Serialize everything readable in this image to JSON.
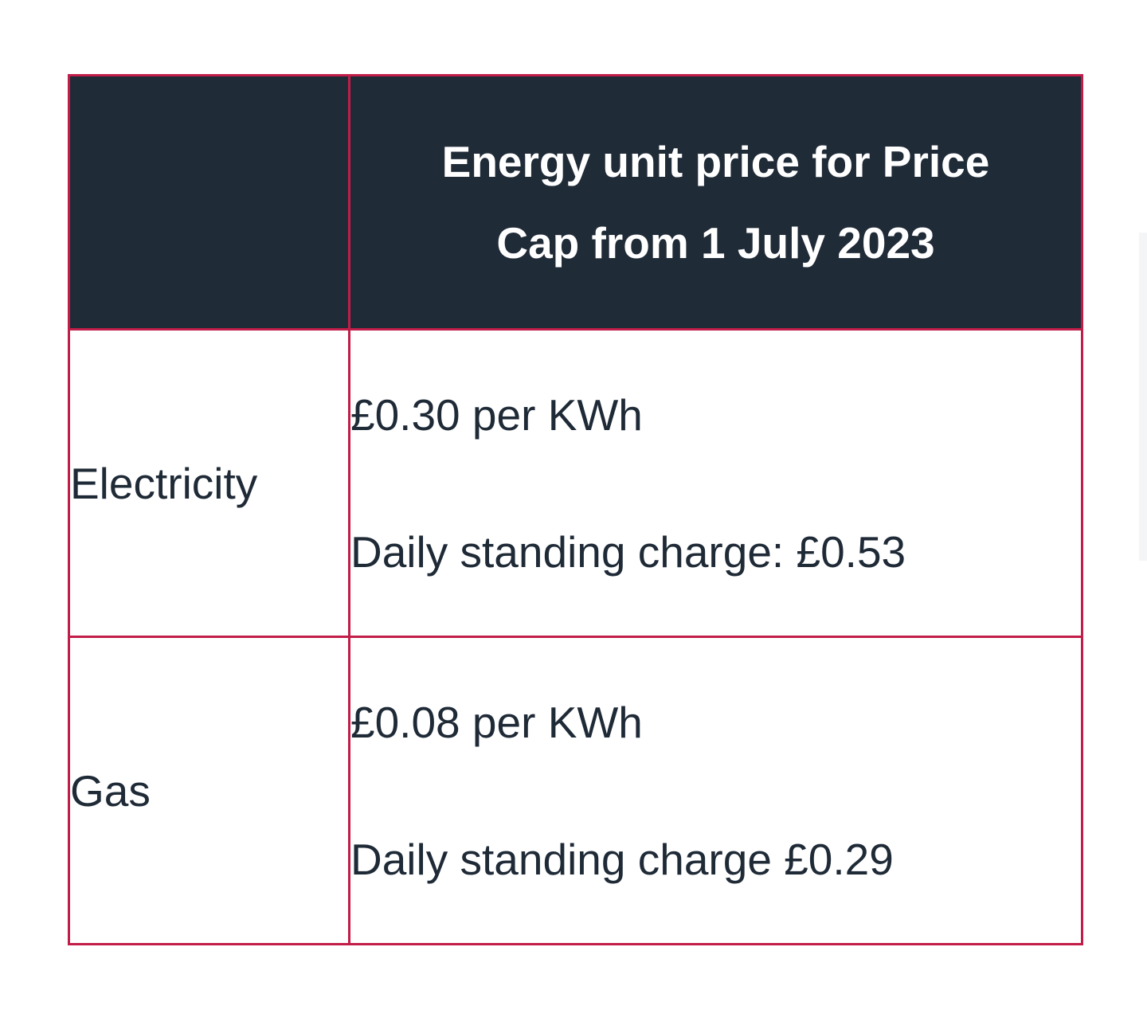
{
  "table": {
    "header": {
      "empty_label": "",
      "price_label": "Energy unit price for Price Cap from 1 July 2023"
    },
    "rows": [
      {
        "label": "Electricity",
        "unit_price": "£0.30 per KWh",
        "standing_charge": "Daily standing charge: £0.53"
      },
      {
        "label": "Gas",
        "unit_price": "£0.08 per KWh",
        "standing_charge": "Daily standing charge £0.29"
      }
    ]
  },
  "colors": {
    "header_background": "#202b38",
    "border": "#c21d48",
    "text": "#1f2a37"
  }
}
